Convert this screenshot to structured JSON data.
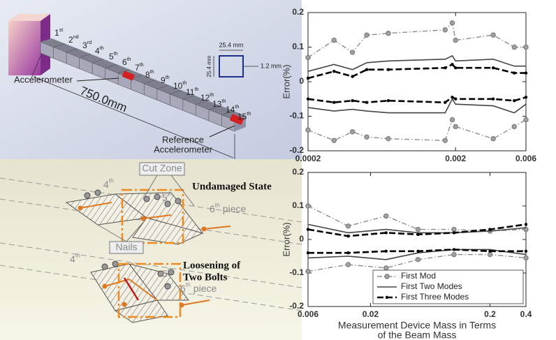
{
  "chart_data": [
    {
      "type": "line",
      "ylabel": "Error(%)",
      "log_x": true,
      "x": [
        0.0002,
        0.0003,
        0.0004,
        0.0005,
        0.0007,
        0.0017,
        0.0019,
        0.002,
        0.0036,
        0.005,
        0.006
      ],
      "xlim": [
        0.0002,
        0.006
      ],
      "xticks": [
        0.0002,
        0.002,
        0.006
      ],
      "ylim": [
        -0.2,
        0.2
      ],
      "yticks": [
        -0.2,
        -0.1,
        0,
        0.1,
        0.2
      ],
      "series": [
        {
          "color": "#8c8c8c",
          "style": "dash-dot",
          "marker": "circle",
          "values": [
            0.07,
            0.12,
            0.085,
            0.135,
            0.14,
            0.15,
            0.17,
            0.12,
            0.135,
            0.1,
            0.1
          ],
          "lower_values": [
            -0.14,
            -0.17,
            -0.145,
            -0.16,
            -0.165,
            -0.17,
            -0.11,
            -0.13,
            -0.165,
            -0.13,
            -0.11
          ]
        },
        {
          "color": "#444444",
          "style": "solid",
          "marker": "none",
          "values": [
            0.03,
            0.05,
            0.035,
            0.055,
            0.06,
            0.065,
            0.075,
            0.06,
            0.065,
            0.045,
            0.045
          ],
          "lower_values": [
            -0.075,
            -0.085,
            -0.08,
            -0.085,
            -0.09,
            -0.09,
            -0.05,
            -0.065,
            -0.07,
            -0.09,
            -0.065
          ]
        },
        {
          "color": "#000000",
          "style": "dashed",
          "marker": "dot",
          "values": [
            0.01,
            0.03,
            0.015,
            0.035,
            0.035,
            0.04,
            0.05,
            0.04,
            0.04,
            0.025,
            0.025
          ],
          "lower_values": [
            -0.05,
            -0.06,
            -0.055,
            -0.06,
            -0.055,
            -0.06,
            -0.045,
            -0.05,
            -0.05,
            -0.055,
            -0.045
          ]
        }
      ]
    },
    {
      "type": "line",
      "ylabel": "Error(%)",
      "xlabel": [
        "Measurement Device Mass in Terms",
        "of the Beam Mass"
      ],
      "log_x": true,
      "x": [
        0.006,
        0.013,
        0.027,
        0.05,
        0.1,
        0.2,
        0.4
      ],
      "xlim": [
        0.006,
        0.4
      ],
      "xticks": [
        0.006,
        0.02,
        0.2,
        0.4
      ],
      "ylim": [
        -0.2,
        0.2
      ],
      "yticks": [
        -0.2,
        -0.1,
        0,
        0.1,
        0.2
      ],
      "legend": "lower right",
      "series": [
        {
          "name": "First Mod",
          "color": "#8c8c8c",
          "style": "dash-dot",
          "marker": "circle",
          "values": [
            0.1,
            0.04,
            0.07,
            0.03,
            0.03,
            0.025,
            0.03
          ],
          "lower_values": [
            -0.095,
            -0.075,
            -0.085,
            -0.06,
            -0.045,
            -0.045,
            -0.055
          ]
        },
        {
          "name": "First Two Modes",
          "color": "#444444",
          "style": "solid",
          "marker": "none",
          "values": [
            0.045,
            0.02,
            0.03,
            0.02,
            0.02,
            0.025,
            0.035
          ],
          "lower_values": [
            -0.055,
            -0.05,
            -0.06,
            -0.04,
            -0.03,
            -0.03,
            -0.045
          ]
        },
        {
          "name": "First Three Modes",
          "color": "#000000",
          "style": "dashed",
          "marker": "dot",
          "values": [
            0.03,
            0.01,
            0.02,
            0.015,
            0.02,
            0.03,
            0.045
          ],
          "lower_values": [
            -0.04,
            -0.04,
            -0.035,
            -0.035,
            -0.03,
            -0.035,
            -0.035
          ]
        }
      ]
    }
  ],
  "diagram": {
    "pieces": [
      {
        "n": "1",
        "sup": "st"
      },
      {
        "n": "2",
        "sup": "nd"
      },
      {
        "n": "3",
        "sup": "rd"
      },
      {
        "n": "4",
        "sup": "th"
      },
      {
        "n": "5",
        "sup": "th"
      },
      {
        "n": "6",
        "sup": "th"
      },
      {
        "n": "7",
        "sup": "th"
      },
      {
        "n": "8",
        "sup": "th"
      },
      {
        "n": "9",
        "sup": "th"
      },
      {
        "n": "10",
        "sup": "th"
      },
      {
        "n": "11",
        "sup": "th"
      },
      {
        "n": "12",
        "sup": "th"
      },
      {
        "n": "13",
        "sup": "th"
      },
      {
        "n": "14",
        "sup": "th"
      },
      {
        "n": "15",
        "sup": "th"
      }
    ],
    "accelerometer": "Accelerometer",
    "length": "750.0mm",
    "reference": [
      "Reference",
      "Accelerometer"
    ],
    "section": {
      "width": "25.4 mm",
      "height": "25.4 mm",
      "thickness": "1.2 mm"
    },
    "cut_zone": "Cut Zone",
    "nails": "Nails",
    "undamaged": "Undamaged State",
    "loosening": [
      "Loosening of",
      "Two Bolts"
    ],
    "upper_joint": [
      {
        "n": "4",
        "sup": "th"
      },
      {
        "n": "5",
        "sup": "th"
      },
      {
        "n": "6",
        "sup": "th",
        "rest": "piece"
      }
    ],
    "lower_joint": [
      {
        "n": "4",
        "sup": "th"
      },
      {
        "n": "5",
        "sup": "th"
      },
      {
        "n": "6",
        "sup": "th",
        "rest": "piece"
      }
    ]
  }
}
